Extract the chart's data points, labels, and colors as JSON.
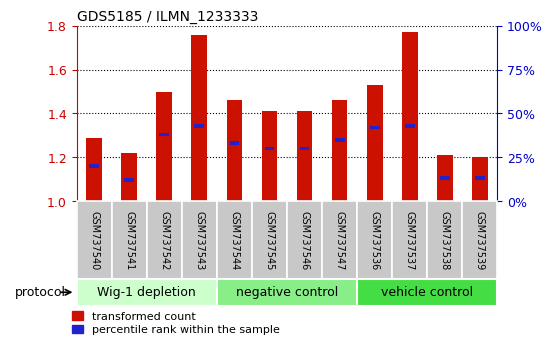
{
  "title": "GDS5185 / ILMN_1233333",
  "samples": [
    "GSM737540",
    "GSM737541",
    "GSM737542",
    "GSM737543",
    "GSM737544",
    "GSM737545",
    "GSM737546",
    "GSM737547",
    "GSM737536",
    "GSM737537",
    "GSM737538",
    "GSM737539"
  ],
  "transformed_counts": [
    1.29,
    1.22,
    1.5,
    1.76,
    1.46,
    1.41,
    1.41,
    1.46,
    1.53,
    1.77,
    1.21,
    1.2
  ],
  "percentile_ranks": [
    20,
    12,
    38,
    43,
    33,
    30,
    30,
    35,
    42,
    43,
    13,
    13
  ],
  "bar_color": "#CC1100",
  "blue_color": "#2222CC",
  "ylim_left": [
    1.0,
    1.8
  ],
  "ylim_right": [
    0,
    100
  ],
  "yticks_left": [
    1.0,
    1.2,
    1.4,
    1.6,
    1.8
  ],
  "yticks_right": [
    0,
    25,
    50,
    75,
    100
  ],
  "ytick_labels_right": [
    "0%",
    "25%",
    "50%",
    "75%",
    "100%"
  ],
  "groups": [
    {
      "label": "Wig-1 depletion",
      "indices": [
        0,
        1,
        2,
        3
      ],
      "color": "#CCFFCC"
    },
    {
      "label": "negative control",
      "indices": [
        4,
        5,
        6,
        7
      ],
      "color": "#88EE88"
    },
    {
      "label": "vehicle control",
      "indices": [
        8,
        9,
        10,
        11
      ],
      "color": "#44DD44"
    }
  ],
  "protocol_label": "protocol",
  "legend_red_label": "transformed count",
  "legend_blue_label": "percentile rank within the sample",
  "bar_width": 0.45,
  "left_tick_color": "#CC0000",
  "right_tick_color": "#0000CC"
}
